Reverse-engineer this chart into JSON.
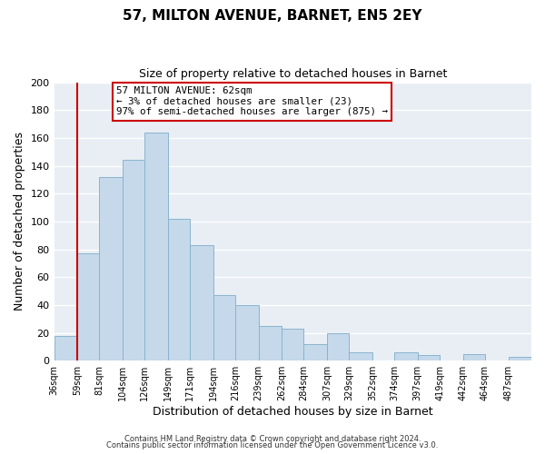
{
  "title": "57, MILTON AVENUE, BARNET, EN5 2EY",
  "subtitle": "Size of property relative to detached houses in Barnet",
  "xlabel": "Distribution of detached houses by size in Barnet",
  "ylabel": "Number of detached properties",
  "bar_color": "#c5d9ea",
  "bar_edge_color": "#8ab4cf",
  "vline_x": 59,
  "vline_color": "#cc0000",
  "categories": [
    "36sqm",
    "59sqm",
    "81sqm",
    "104sqm",
    "126sqm",
    "149sqm",
    "171sqm",
    "194sqm",
    "216sqm",
    "239sqm",
    "262sqm",
    "284sqm",
    "307sqm",
    "329sqm",
    "352sqm",
    "374sqm",
    "397sqm",
    "419sqm",
    "442sqm",
    "464sqm",
    "487sqm"
  ],
  "bin_edges": [
    36,
    59,
    81,
    104,
    126,
    149,
    171,
    194,
    216,
    239,
    262,
    284,
    307,
    329,
    352,
    374,
    397,
    419,
    442,
    464,
    487
  ],
  "values": [
    18,
    77,
    132,
    144,
    164,
    102,
    83,
    47,
    40,
    25,
    23,
    12,
    20,
    6,
    0,
    6,
    4,
    0,
    5,
    0,
    3
  ],
  "ylim": [
    0,
    200
  ],
  "yticks": [
    0,
    20,
    40,
    60,
    80,
    100,
    120,
    140,
    160,
    180,
    200
  ],
  "annotation_title": "57 MILTON AVENUE: 62sqm",
  "annotation_line1": "← 3% of detached houses are smaller (23)",
  "annotation_line2": "97% of semi-detached houses are larger (875) →",
  "footer1": "Contains HM Land Registry data © Crown copyright and database right 2024.",
  "footer2": "Contains public sector information licensed under the Open Government Licence v3.0.",
  "background_color": "#ffffff",
  "plot_bg_color": "#e8eef4",
  "grid_color": "#ffffff"
}
